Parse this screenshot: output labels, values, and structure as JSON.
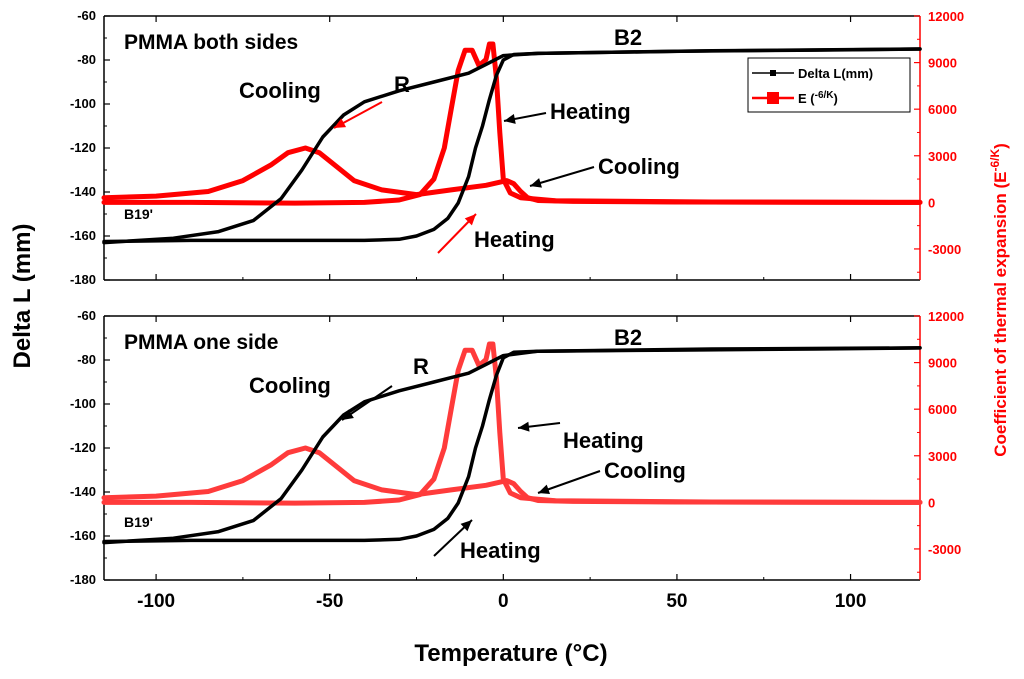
{
  "chart_data": {
    "type": "line",
    "shared_x_axis": {
      "label": "Temperature (°C)",
      "range": [
        -115,
        120
      ],
      "ticks": [
        -100,
        -50,
        0,
        50,
        100
      ]
    },
    "left_y_axis": {
      "label": "Delta L (mm)",
      "range": [
        -180,
        -60
      ],
      "ticks": [
        -180,
        -160,
        -140,
        -120,
        -100,
        -80,
        -60
      ]
    },
    "right_y_axis": {
      "label_main": "Coefficient of thermal expansion (E",
      "label_sup": "-6/K",
      "label_close": ")",
      "range": [
        -5000,
        12000
      ],
      "ticks": [
        -3000,
        0,
        3000,
        6000,
        9000,
        12000
      ],
      "color": "#ff0000"
    },
    "legend": {
      "placement": "top-right of top panel",
      "entries": [
        {
          "label": "Delta L(mm)",
          "color": "#000000",
          "marker": "square"
        },
        {
          "label_main": "E (",
          "label_sup": "-6/K",
          "label_close": ")",
          "color": "#ff0000",
          "marker": "square"
        }
      ]
    },
    "panels": [
      {
        "title": "PMMA both sides",
        "e_color": "#ff0000",
        "arrow_colors": {
          "cooling_upper": "#ff0000",
          "heating_lower": "#ff0000",
          "heating_right": "#000000",
          "cooling_right": "#000000"
        },
        "annotations": {
          "phase_B2": "B2",
          "phase_R": "R",
          "phase_B19": "B19'",
          "cooling_upper": "Cooling",
          "heating_right": "Heating",
          "cooling_right": "Cooling",
          "heating_lower": "Heating"
        },
        "delta_l_heating": [
          [
            -115,
            -162.5
          ],
          [
            -90,
            -162
          ],
          [
            -60,
            -162
          ],
          [
            -40,
            -162
          ],
          [
            -30,
            -161.5
          ],
          [
            -25,
            -160
          ],
          [
            -20,
            -157
          ],
          [
            -16,
            -152
          ],
          [
            -13,
            -145
          ],
          [
            -10,
            -133
          ],
          [
            -8,
            -120
          ],
          [
            -6,
            -110
          ],
          [
            -4,
            -98
          ],
          [
            -2,
            -87
          ],
          [
            0,
            -80
          ],
          [
            3,
            -77.5
          ],
          [
            10,
            -77
          ],
          [
            50,
            -76
          ],
          [
            90,
            -75.5
          ],
          [
            120,
            -75
          ]
        ],
        "delta_l_cooling": [
          [
            120,
            -75
          ],
          [
            60,
            -75.8
          ],
          [
            10,
            -77
          ],
          [
            0,
            -78
          ],
          [
            -5,
            -82
          ],
          [
            -10,
            -86
          ],
          [
            -20,
            -90
          ],
          [
            -30,
            -94
          ],
          [
            -40,
            -99
          ],
          [
            -46,
            -105
          ],
          [
            -52,
            -115
          ],
          [
            -58,
            -130
          ],
          [
            -64,
            -143
          ],
          [
            -72,
            -153
          ],
          [
            -82,
            -158
          ],
          [
            -95,
            -161
          ],
          [
            -115,
            -163
          ]
        ],
        "e_heating": [
          [
            -115,
            0
          ],
          [
            -90,
            0
          ],
          [
            -60,
            -50
          ],
          [
            -40,
            0
          ],
          [
            -30,
            150
          ],
          [
            -24,
            500
          ],
          [
            -20,
            1500
          ],
          [
            -17,
            3500
          ],
          [
            -15,
            6000
          ],
          [
            -13,
            8500
          ],
          [
            -11,
            9800
          ],
          [
            -9,
            9800
          ],
          [
            -7,
            8800
          ],
          [
            -5,
            9200
          ],
          [
            -4,
            10200
          ],
          [
            -3,
            10200
          ],
          [
            -2,
            8000
          ],
          [
            -1,
            4500
          ],
          [
            0,
            1500
          ],
          [
            2,
            600
          ],
          [
            5,
            300
          ],
          [
            15,
            100
          ],
          [
            60,
            20
          ],
          [
            120,
            0
          ]
        ],
        "e_cooling": [
          [
            120,
            0
          ],
          [
            50,
            20
          ],
          [
            20,
            60
          ],
          [
            10,
            120
          ],
          [
            7,
            300
          ],
          [
            5,
            700
          ],
          [
            3,
            1200
          ],
          [
            1,
            1400
          ],
          [
            -1,
            1300
          ],
          [
            -5,
            1100
          ],
          [
            -15,
            800
          ],
          [
            -25,
            500
          ],
          [
            -35,
            800
          ],
          [
            -43,
            1400
          ],
          [
            -48,
            2300
          ],
          [
            -53,
            3200
          ],
          [
            -57,
            3500
          ],
          [
            -62,
            3200
          ],
          [
            -67,
            2400
          ],
          [
            -75,
            1400
          ],
          [
            -85,
            700
          ],
          [
            -100,
            400
          ],
          [
            -115,
            300
          ]
        ]
      },
      {
        "title": "PMMA one side",
        "e_color": "#ff3b3b",
        "arrow_colors": {
          "cooling_upper": "#000000",
          "heating_lower": "#000000",
          "heating_right": "#000000",
          "cooling_right": "#000000"
        },
        "annotations": {
          "phase_B2": "B2",
          "phase_R": "R",
          "phase_B19": "B19'",
          "cooling_upper": "Cooling",
          "heating_right": "Heating",
          "cooling_right": "Cooling",
          "heating_lower": "Heating"
        },
        "delta_l_heating": [
          [
            -115,
            -162.5
          ],
          [
            -90,
            -162
          ],
          [
            -60,
            -162
          ],
          [
            -40,
            -162
          ],
          [
            -30,
            -161.5
          ],
          [
            -25,
            -160
          ],
          [
            -20,
            -157
          ],
          [
            -16,
            -152
          ],
          [
            -13,
            -145
          ],
          [
            -10,
            -133
          ],
          [
            -8,
            -120
          ],
          [
            -6,
            -110
          ],
          [
            -4,
            -98
          ],
          [
            -2,
            -87
          ],
          [
            0,
            -79
          ],
          [
            3,
            -76.5
          ],
          [
            10,
            -76
          ],
          [
            50,
            -75.5
          ],
          [
            90,
            -75
          ],
          [
            120,
            -74.5
          ]
        ],
        "delta_l_cooling": [
          [
            120,
            -74.5
          ],
          [
            60,
            -75
          ],
          [
            10,
            -76
          ],
          [
            0,
            -78
          ],
          [
            -5,
            -82
          ],
          [
            -10,
            -86
          ],
          [
            -20,
            -90
          ],
          [
            -30,
            -94
          ],
          [
            -40,
            -99
          ],
          [
            -46,
            -105
          ],
          [
            -52,
            -115
          ],
          [
            -58,
            -130
          ],
          [
            -64,
            -143
          ],
          [
            -72,
            -153
          ],
          [
            -82,
            -158
          ],
          [
            -95,
            -161
          ],
          [
            -115,
            -163
          ]
        ],
        "e_heating": [
          [
            -115,
            0
          ],
          [
            -90,
            0
          ],
          [
            -60,
            -50
          ],
          [
            -40,
            0
          ],
          [
            -30,
            150
          ],
          [
            -24,
            500
          ],
          [
            -20,
            1500
          ],
          [
            -17,
            3500
          ],
          [
            -15,
            6000
          ],
          [
            -13,
            8500
          ],
          [
            -11,
            9800
          ],
          [
            -9,
            9800
          ],
          [
            -7,
            8800
          ],
          [
            -5,
            9200
          ],
          [
            -4,
            10200
          ],
          [
            -3,
            10200
          ],
          [
            -2,
            8000
          ],
          [
            -1,
            4500
          ],
          [
            0,
            1500
          ],
          [
            2,
            600
          ],
          [
            5,
            300
          ],
          [
            15,
            100
          ],
          [
            60,
            20
          ],
          [
            120,
            0
          ]
        ],
        "e_cooling": [
          [
            120,
            0
          ],
          [
            50,
            20
          ],
          [
            20,
            60
          ],
          [
            10,
            120
          ],
          [
            7,
            300
          ],
          [
            5,
            700
          ],
          [
            3,
            1200
          ],
          [
            1,
            1400
          ],
          [
            -1,
            1300
          ],
          [
            -5,
            1100
          ],
          [
            -15,
            800
          ],
          [
            -25,
            500
          ],
          [
            -35,
            800
          ],
          [
            -43,
            1400
          ],
          [
            -48,
            2300
          ],
          [
            -53,
            3200
          ],
          [
            -57,
            3500
          ],
          [
            -62,
            3200
          ],
          [
            -67,
            2400
          ],
          [
            -75,
            1400
          ],
          [
            -85,
            700
          ],
          [
            -100,
            400
          ],
          [
            -115,
            300
          ]
        ]
      }
    ]
  }
}
